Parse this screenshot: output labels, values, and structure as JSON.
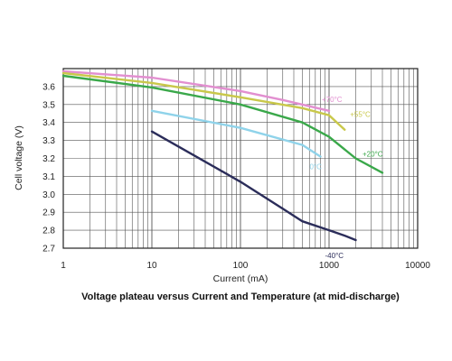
{
  "chart_data": {
    "type": "line",
    "title": "Voltage plateau versus Current and Temperature (at mid-discharge)",
    "xlabel": "Current (mA)",
    "ylabel": "Cell voltage (V)",
    "xscale": "log",
    "xlim": [
      1,
      10000
    ],
    "ylim": [
      2.7,
      3.7
    ],
    "grid": true,
    "x_ticks": [
      "1",
      "10",
      "100",
      "1000",
      "10000"
    ],
    "y_ticks": [
      "2.7",
      "2.8",
      "2.9",
      "3.0",
      "3.1",
      "3.2",
      "3.3",
      "3.4",
      "3.5",
      "3.6"
    ],
    "series": [
      {
        "name": "+70°C",
        "color": "#e28fd0",
        "x": [
          1,
          10,
          100,
          300,
          1000
        ],
        "y": [
          3.685,
          3.65,
          3.575,
          3.525,
          3.465
        ]
      },
      {
        "name": "+55°C",
        "color": "#c9c84a",
        "x": [
          1,
          10,
          100,
          500,
          1000,
          1500
        ],
        "y": [
          3.675,
          3.62,
          3.54,
          3.48,
          3.44,
          3.36
        ]
      },
      {
        "name": "+20°C",
        "color": "#3aa84a",
        "x": [
          1,
          10,
          100,
          500,
          1000,
          2000,
          4000
        ],
        "y": [
          3.66,
          3.595,
          3.5,
          3.4,
          3.32,
          3.2,
          3.12
        ]
      },
      {
        "name": "0°C",
        "color": "#8fd3ea",
        "x": [
          10,
          100,
          500,
          800
        ],
        "y": [
          3.465,
          3.37,
          3.275,
          3.21
        ]
      },
      {
        "name": "-40°C",
        "color": "#2b2d5a",
        "x": [
          10,
          100,
          300,
          500,
          1000,
          1500,
          2000
        ],
        "y": [
          3.35,
          3.07,
          2.92,
          2.85,
          2.8,
          2.77,
          2.745
        ]
      }
    ]
  }
}
